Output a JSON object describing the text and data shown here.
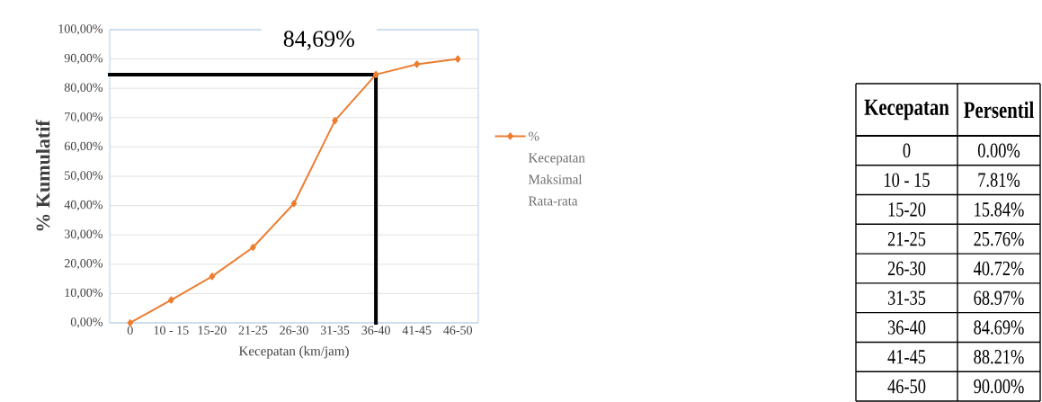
{
  "chart_data": [
    {
      "type": "line",
      "xlabel": "Kecepatan (km/jam)",
      "ylabel": "% Kumulatif",
      "categories": [
        "0",
        "10 - 15",
        "15-20",
        "21-25",
        "26-30",
        "31-35",
        "36-40",
        "41-45",
        "46-50"
      ],
      "series": [
        {
          "name": "% Kecepatan Maksimal Rata-rata",
          "color": "#ed7d31",
          "values": [
            0,
            7.81,
            15.84,
            25.76,
            40.72,
            68.97,
            84.69,
            88.21,
            90.0
          ]
        }
      ],
      "ylim": [
        0,
        100
      ],
      "yticks": [
        {
          "value": 0,
          "label": "0,00%"
        },
        {
          "value": 10,
          "label": "10,00%"
        },
        {
          "value": 20,
          "label": "20,00%"
        },
        {
          "value": 30,
          "label": "30,00%"
        },
        {
          "value": 40,
          "label": "40,00%"
        },
        {
          "value": 50,
          "label": "50,00%"
        },
        {
          "value": 60,
          "label": "60,00%"
        },
        {
          "value": 70,
          "label": "70,00%"
        },
        {
          "value": 80,
          "label": "80,00%"
        },
        {
          "value": 90,
          "label": "90,00%"
        },
        {
          "value": 100,
          "label": "100,00%"
        }
      ],
      "ref_lines": [
        {
          "axis": "y",
          "value": 84.69,
          "label": "84,69%",
          "color": "#000000"
        },
        {
          "axis": "x",
          "value": "36-40",
          "color": "#000000"
        }
      ],
      "grid": "y",
      "legend": "right",
      "marker": "diamond",
      "line_style": "solid"
    },
    {
      "type": "other",
      "annotations": [
        "Kecepatan",
        "Persentil",
        "0",
        "0.00%",
        "10 - 15",
        "7.81%",
        "15-20",
        "15.84%",
        "21-25",
        "25.76%",
        "26-30",
        "40.72%",
        "31-35",
        "68.97%",
        "36-40",
        "84.69%",
        "41-45",
        "88.21%",
        "46-50",
        "90.00%"
      ]
    }
  ]
}
